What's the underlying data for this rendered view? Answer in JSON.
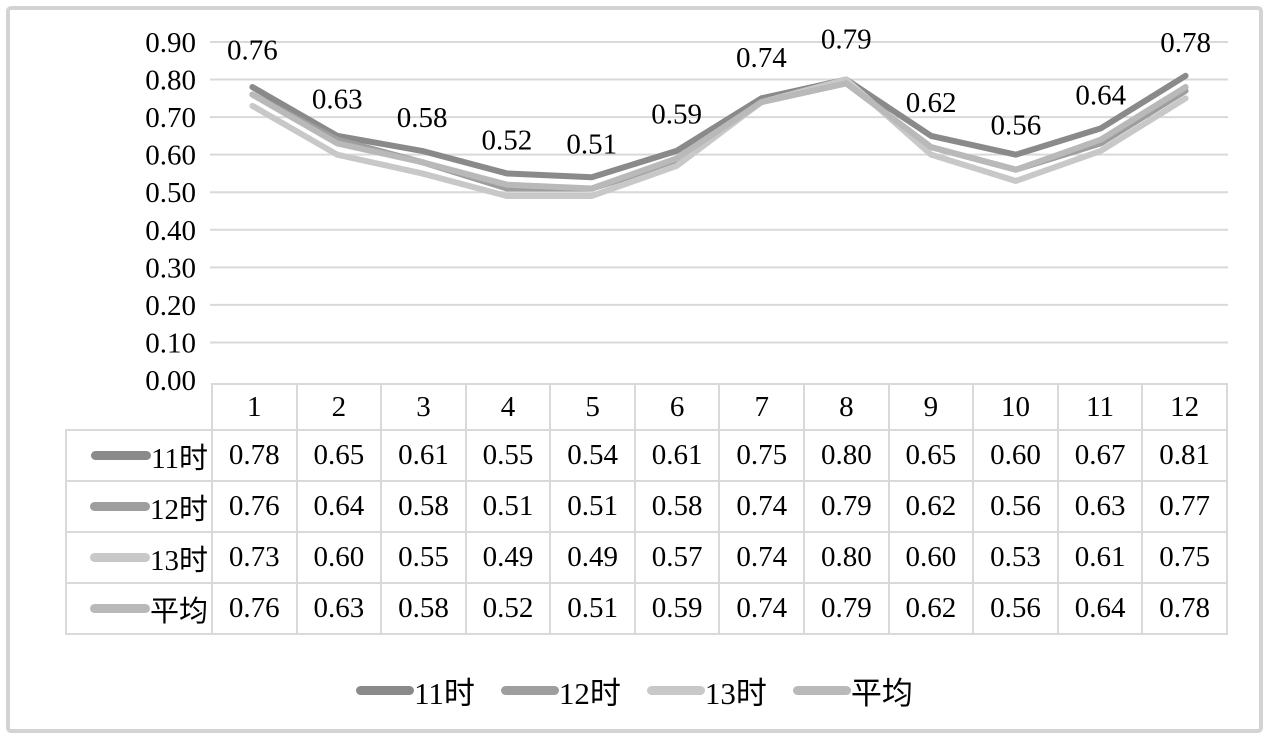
{
  "colors": {
    "gridline": "#d9d9d9",
    "table_border": "#d9d9d9",
    "frame_border": "#d3d3d3",
    "text": "#000000"
  },
  "chart_data": {
    "type": "line",
    "title": "",
    "xlabel": "",
    "ylabel": "",
    "categories": [
      "1",
      "2",
      "3",
      "4",
      "5",
      "6",
      "7",
      "8",
      "9",
      "10",
      "11",
      "12"
    ],
    "series": [
      {
        "key": "h11",
        "name": "11时",
        "color": "#8a8a8a",
        "values": [
          0.78,
          0.65,
          0.61,
          0.55,
          0.54,
          0.61,
          0.75,
          0.8,
          0.65,
          0.6,
          0.67,
          0.81
        ]
      },
      {
        "key": "h12",
        "name": "12时",
        "color": "#9e9e9e",
        "values": [
          0.76,
          0.64,
          0.58,
          0.51,
          0.51,
          0.58,
          0.74,
          0.79,
          0.62,
          0.56,
          0.63,
          0.77
        ]
      },
      {
        "key": "h13",
        "name": "13时",
        "color": "#c8c8c8",
        "values": [
          0.73,
          0.6,
          0.55,
          0.49,
          0.49,
          0.57,
          0.74,
          0.8,
          0.6,
          0.53,
          0.61,
          0.75
        ]
      },
      {
        "key": "avg",
        "name": "平均",
        "color": "#b9b9b9",
        "values": [
          0.76,
          0.63,
          0.58,
          0.52,
          0.51,
          0.59,
          0.74,
          0.79,
          0.62,
          0.56,
          0.64,
          0.78
        ]
      }
    ],
    "data_labels_series": "平均",
    "data_labels": [
      "0.76",
      "0.63",
      "0.58",
      "0.52",
      "0.51",
      "0.59",
      "0.74",
      "0.79",
      "0.62",
      "0.56",
      "0.64",
      "0.78"
    ],
    "y_ticks": [
      "0.90",
      "0.80",
      "0.70",
      "0.60",
      "0.50",
      "0.40",
      "0.30",
      "0.20",
      "0.10",
      "0.00"
    ],
    "ylim": [
      0,
      0.9
    ],
    "grid": true,
    "legend_position": "bottom",
    "table_shown": true
  }
}
